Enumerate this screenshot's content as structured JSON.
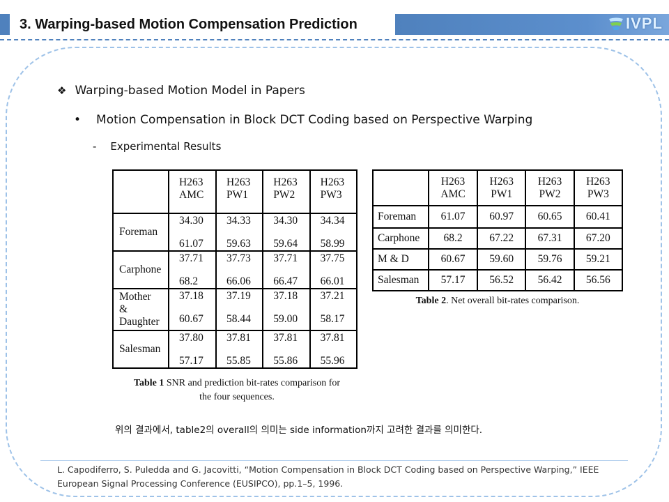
{
  "header": {
    "title": "3. Warping-based  Motion  Compensation  Prediction",
    "logo_text": "IVPL",
    "accent_color": "#4f81bd"
  },
  "bullets": {
    "level1": {
      "marker": "❖",
      "text": "Warping-based Motion Model in Papers"
    },
    "level2": {
      "marker": "•",
      "text": "Motion Compensation in Block DCT Coding based on Perspective Warping"
    },
    "level3": {
      "marker": "-",
      "text": "Experimental Results"
    }
  },
  "table1": {
    "columns": [
      [
        "H263",
        "AMC"
      ],
      [
        "H263",
        "PW1"
      ],
      [
        "H263",
        "PW2"
      ],
      [
        "H263",
        "PW3"
      ]
    ],
    "rows": [
      {
        "label": [
          "Foreman"
        ],
        "snr": [
          "34.30",
          "34.33",
          "34.30",
          "34.34"
        ],
        "rates": [
          "61.07",
          "59.63",
          "59.64",
          "58.99"
        ]
      },
      {
        "label": [
          "Carphone"
        ],
        "snr": [
          "37.71",
          "37.73",
          "37.71",
          "37.75"
        ],
        "rates": [
          "68.2",
          "66.06",
          "66.47",
          "66.01"
        ]
      },
      {
        "label": [
          "Mother",
          "&",
          "Daughter"
        ],
        "snr": [
          "37.18",
          "37.19",
          "37.18",
          "37.21"
        ],
        "rates": [
          "60.67",
          "58.44",
          "59.00",
          "58.17"
        ]
      },
      {
        "label": [
          "Salesman"
        ],
        "snr": [
          "37.80",
          "37.81",
          "37.81",
          "37.81"
        ],
        "rates": [
          "57.17",
          "55.85",
          "55.86",
          "55.96"
        ]
      }
    ],
    "caption_bold": "Table 1",
    "caption_text": " SNR and prediction bit-rates comparison for",
    "caption_text2": "the four sequences."
  },
  "table2": {
    "columns": [
      [
        "H263",
        "AMC"
      ],
      [
        "H263",
        "PW1"
      ],
      [
        "H263",
        "PW2"
      ],
      [
        "H263",
        "PW3"
      ]
    ],
    "rows": [
      {
        "label": "Foreman",
        "values": [
          "61.07",
          "60.97",
          "60.65",
          "60.41"
        ]
      },
      {
        "label": "Carphone",
        "values": [
          "68.2",
          "67.22",
          "67.31",
          "67.20"
        ]
      },
      {
        "label": "M & D",
        "values": [
          "60.67",
          "59.60",
          "59.76",
          "59.21"
        ]
      },
      {
        "label": "Salesman",
        "values": [
          "57.17",
          "56.52",
          "56.42",
          "56.56"
        ]
      }
    ],
    "caption_bold": "Table 2",
    "caption_text": ". Net overall bit-rates comparison."
  },
  "note": "위의 결과에서, table2의 overall의 의미는 side information까지 고려한 결과를 의미한다.",
  "reference": {
    "line1": "L. Capodiferro, S. Puledda and G. Jacovitti, “Motion Compensation in Block DCT Coding based on Perspective Warping,” IEEE",
    "line2": "European Signal Processing Conference (EUSIPCO), pp.1–5, 1996."
  }
}
